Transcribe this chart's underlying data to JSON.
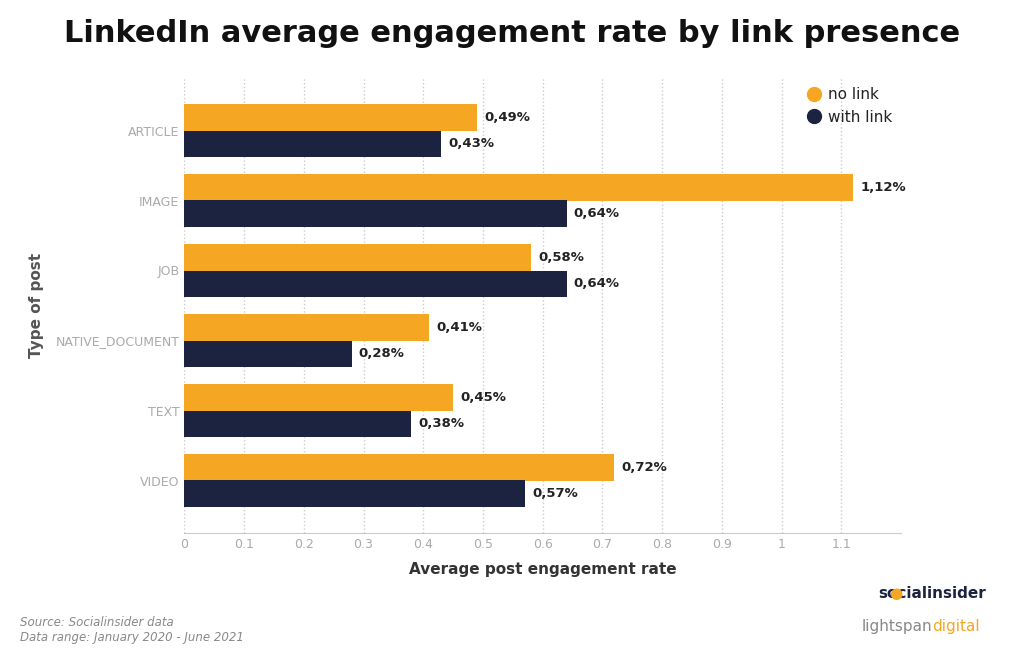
{
  "title": "LinkedIn average engagement rate by link presence",
  "categories": [
    "ARTICLE",
    "IMAGE",
    "JOB",
    "NATIVE_DOCUMENT",
    "TEXT",
    "VIDEO"
  ],
  "no_link": [
    0.49,
    1.12,
    0.58,
    0.41,
    0.45,
    0.72
  ],
  "with_link": [
    0.43,
    0.64,
    0.64,
    0.28,
    0.38,
    0.57
  ],
  "no_link_labels": [
    "0,49%",
    "1,12%",
    "0,58%",
    "0,41%",
    "0,45%",
    "0,72%"
  ],
  "with_link_labels": [
    "0,43%",
    "0,64%",
    "0,64%",
    "0,28%",
    "0,38%",
    "0,57%"
  ],
  "color_no_link": "#F5A623",
  "color_with_link": "#1C2340",
  "xlabel": "Average post engagement rate",
  "ylabel": "Type of post",
  "xlim": [
    0,
    1.2
  ],
  "xticks": [
    0,
    0.1,
    0.2,
    0.3,
    0.4,
    0.5,
    0.6,
    0.7,
    0.8,
    0.9,
    1.0,
    1.1
  ],
  "xtick_labels": [
    "0",
    "0.1",
    "0.2",
    "0.3",
    "0.4",
    "0.5",
    "0.6",
    "0.7",
    "0.8",
    "0.9",
    "1",
    "1.1"
  ],
  "legend_no_link": "no link",
  "legend_with_link": "with link",
  "source_text": "Source: Socialinsider data\nData range: January 2020 - June 2021",
  "background_color": "#ffffff",
  "grid_color": "#cccccc",
  "bar_height": 0.38,
  "label_fontsize": 9.5,
  "tick_label_color": "#aaaaaa",
  "title_fontsize": 22,
  "ylabel_color": "#555555",
  "xlabel_color": "#333333"
}
